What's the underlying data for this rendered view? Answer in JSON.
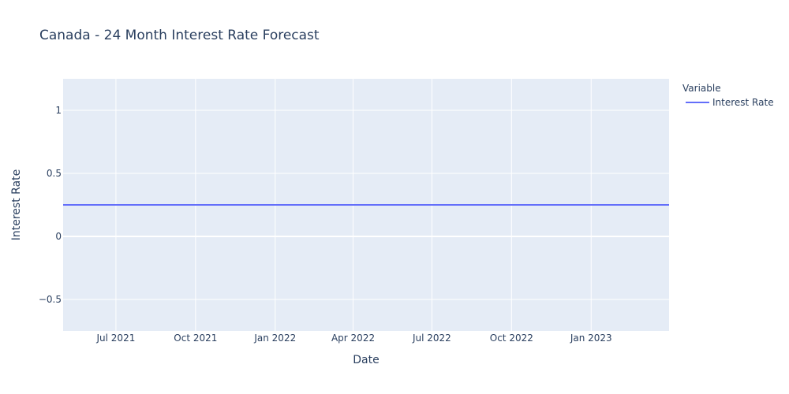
{
  "chart_data": {
    "type": "line",
    "title": "Canada - 24 Month Interest Rate Forecast",
    "xlabel": "Date",
    "ylabel": "Interest Rate",
    "x_tick_labels": [
      "Jul 2021",
      "Oct 2021",
      "Jan 2022",
      "Apr 2022",
      "Jul 2022",
      "Oct 2022",
      "Jan 2023"
    ],
    "x_tick_dates": [
      "2021-07-01",
      "2021-10-01",
      "2022-01-01",
      "2022-04-01",
      "2022-07-01",
      "2022-10-01",
      "2023-01-01"
    ],
    "x_range": [
      "2021-05-01",
      "2023-04-01"
    ],
    "y_ticks": [
      -0.5,
      0,
      0.5,
      1
    ],
    "y_tick_labels": [
      "−0.5",
      "0",
      "0.5",
      "1"
    ],
    "ylim": [
      -0.75,
      1.25
    ],
    "grid": true,
    "legend": {
      "title": "Variable",
      "placement": "top-right outside"
    },
    "series": [
      {
        "name": "Interest Rate",
        "color": "#636efa",
        "x": [
          "2021-05-01",
          "2023-04-01"
        ],
        "y": [
          0.25,
          0.25
        ]
      }
    ]
  },
  "colors": {
    "plot_bg": "#e5ecf6",
    "grid": "#ffffff",
    "text": "#2a3f5f"
  }
}
